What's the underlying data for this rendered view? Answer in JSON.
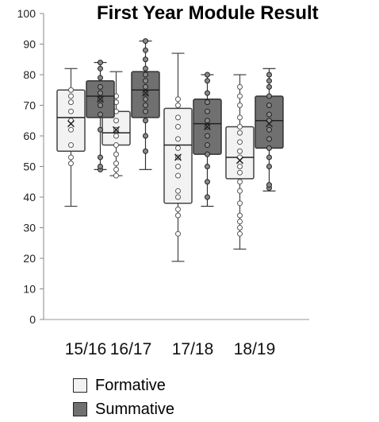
{
  "chart_data": {
    "type": "box",
    "title": "First Year Module Result",
    "xlabel": "",
    "ylabel": "",
    "ylim": [
      0,
      100
    ],
    "yticks": [
      "0",
      "10",
      "20",
      "30",
      "40",
      "50",
      "60",
      "70",
      "80",
      "90",
      "100"
    ],
    "categories": [
      "15/16",
      "16/17",
      "17/18",
      "18/19"
    ],
    "grid": false,
    "legend_position": "bottom",
    "series": [
      {
        "name": "Formative",
        "color": "#f2f2f2",
        "boxes": [
          {
            "min": 37,
            "q1": 55,
            "median": 66,
            "q3": 75,
            "max": 82,
            "mean": 64,
            "points": [
              51,
              53,
              57,
              62,
              65,
              68,
              71,
              73,
              75
            ]
          },
          {
            "min": 47,
            "q1": 57,
            "median": 61,
            "q3": 68,
            "max": 81,
            "mean": 62,
            "points": [
              47,
              49,
              51,
              54,
              57,
              60,
              62,
              65,
              68,
              71,
              73
            ]
          },
          {
            "min": 19,
            "q1": 38,
            "median": 57,
            "q3": 69,
            "max": 87,
            "mean": 53,
            "points": [
              28,
              34,
              36,
              40,
              42,
              47,
              50,
              53,
              56,
              59,
              63,
              66,
              70,
              72
            ]
          },
          {
            "min": 23,
            "q1": 46,
            "median": 53,
            "q3": 63,
            "max": 80,
            "mean": 52,
            "points": [
              28,
              30,
              32,
              34,
              38,
              42,
              45,
              48,
              50,
              53,
              55,
              58,
              61,
              63,
              66,
              70,
              73,
              76
            ]
          }
        ]
      },
      {
        "name": "Summative",
        "color": "#707070",
        "boxes": [
          {
            "min": 49,
            "q1": 66,
            "median": 73,
            "q3": 78,
            "max": 84,
            "mean": 72,
            "points": [
              49,
              50,
              53,
              62,
              67,
              70,
              72,
              74,
              76,
              79,
              82,
              84
            ]
          },
          {
            "min": 49,
            "q1": 66,
            "median": 75,
            "q3": 81,
            "max": 91,
            "mean": 74,
            "points": [
              55,
              60,
              65,
              68,
              70,
              72,
              74,
              76,
              78,
              80,
              82,
              85,
              88,
              91
            ]
          },
          {
            "min": 37,
            "q1": 54,
            "median": 64,
            "q3": 72,
            "max": 80,
            "mean": 63,
            "points": [
              40,
              45,
              50,
              54,
              57,
              60,
              63,
              65,
              68,
              71,
              74,
              78,
              80
            ]
          },
          {
            "min": 42,
            "q1": 56,
            "median": 65,
            "q3": 73,
            "max": 82,
            "mean": 64,
            "points": [
              43,
              44,
              50,
              53,
              56,
              59,
              62,
              65,
              67,
              70,
              73,
              76,
              78,
              80
            ]
          }
        ]
      }
    ]
  }
}
